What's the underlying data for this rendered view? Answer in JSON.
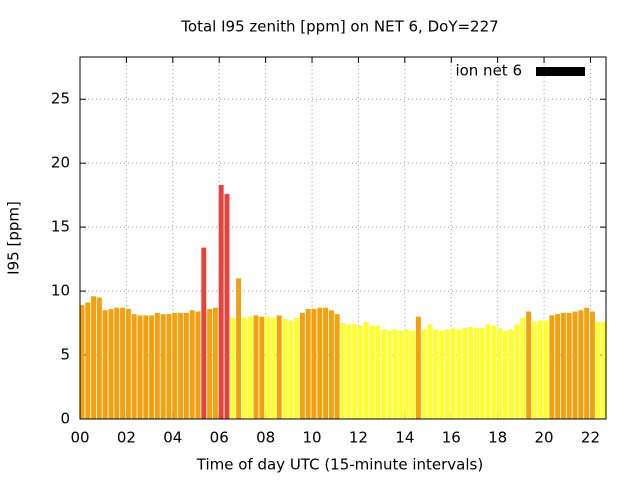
{
  "chart_data": {
    "type": "bar",
    "title": "Total I95 zenith [ppm] on NET 6, DoY=227",
    "x_label": "Time of day UTC (15-minute intervals)",
    "y_label": "I95 [ppm]",
    "x": [
      0,
      0.25,
      0.5,
      0.75,
      1,
      1.25,
      1.5,
      1.75,
      2,
      2.25,
      2.5,
      2.75,
      3,
      3.25,
      3.5,
      3.75,
      4,
      4.25,
      4.5,
      4.75,
      5,
      5.25,
      5.5,
      5.75,
      6,
      6.25,
      6.5,
      6.75,
      7,
      7.25,
      7.5,
      7.75,
      8,
      8.25,
      8.5,
      8.75,
      9,
      9.25,
      9.5,
      9.75,
      10,
      10.25,
      10.5,
      10.75,
      11,
      11.25,
      11.5,
      11.75,
      12,
      12.25,
      12.5,
      12.75,
      13,
      13.25,
      13.5,
      13.75,
      14,
      14.25,
      14.5,
      14.75,
      15,
      15.25,
      15.5,
      15.75,
      16,
      16.25,
      16.5,
      16.75,
      17,
      17.25,
      17.5,
      17.75,
      18,
      18.25,
      18.5,
      18.75,
      19,
      19.25,
      19.5,
      19.75,
      20,
      20.25,
      20.5,
      20.75,
      21,
      21.25,
      21.5,
      21.75,
      22,
      22.25,
      22.5
    ],
    "series": [
      {
        "name": "ion net 6",
        "color": "#000000",
        "values": [
          8.9,
          9.1,
          9.6,
          9.5,
          8.5,
          8.6,
          8.7,
          8.7,
          8.6,
          8.2,
          8.1,
          8.1,
          8.1,
          8.3,
          8.2,
          8.2,
          8.3,
          8.3,
          8.3,
          8.5,
          8.4,
          13.4,
          8.6,
          8.7,
          18.3,
          17.6,
          7.9,
          11.0,
          7.9,
          8.0,
          8.1,
          8.0,
          8.0,
          7.9,
          8.1,
          7.8,
          7.7,
          7.9,
          8.3,
          8.6,
          8.6,
          8.7,
          8.7,
          8.5,
          8.2,
          7.5,
          7.4,
          7.4,
          7.3,
          7.6,
          7.3,
          7.3,
          7.0,
          6.9,
          7.0,
          6.9,
          7.0,
          6.9,
          8.0,
          7.0,
          7.4,
          7.0,
          6.9,
          7.0,
          7.1,
          7.0,
          7.1,
          7.2,
          7.1,
          7.1,
          7.4,
          7.3,
          7.1,
          6.9,
          7.0,
          7.4,
          7.9,
          8.4,
          7.6,
          7.7,
          7.7,
          8.1,
          8.2,
          8.3,
          8.3,
          8.4,
          8.5,
          8.7,
          8.4,
          7.6,
          7.6
        ],
        "colors": [
          "#f5a00f",
          "#f5a00f",
          "#f5a00f",
          "#f5a00f",
          "#f5a00f",
          "#f5a00f",
          "#f5a00f",
          "#f5a00f",
          "#f5a00f",
          "#f5a00f",
          "#f5a00f",
          "#f5a00f",
          "#f5a00f",
          "#f5a00f",
          "#f5a00f",
          "#f5a00f",
          "#f5a00f",
          "#f5a00f",
          "#f5a00f",
          "#f5a00f",
          "#f5a00f",
          "#e8423c",
          "#f5a00f",
          "#f5a00f",
          "#e8423c",
          "#e8423c",
          "#ffff30",
          "#f5a00f",
          "#ffff30",
          "#ffff30",
          "#f5a00f",
          "#f5a00f",
          "#ffff30",
          "#ffff30",
          "#f5a00f",
          "#ffff30",
          "#ffff30",
          "#ffff30",
          "#f5a00f",
          "#f5a00f",
          "#f5a00f",
          "#f5a00f",
          "#f5a00f",
          "#f5a00f",
          "#f5a00f",
          "#ffff30",
          "#ffff30",
          "#ffff30",
          "#ffff30",
          "#ffff30",
          "#ffff30",
          "#ffff30",
          "#ffff30",
          "#ffff30",
          "#ffff30",
          "#ffff30",
          "#ffff30",
          "#ffff30",
          "#f5a00f",
          "#ffff30",
          "#ffff30",
          "#ffff30",
          "#ffff30",
          "#ffff30",
          "#ffff30",
          "#ffff30",
          "#ffff30",
          "#ffff30",
          "#ffff30",
          "#ffff30",
          "#ffff30",
          "#ffff30",
          "#ffff30",
          "#ffff30",
          "#ffff30",
          "#ffff30",
          "#ffff30",
          "#f5a00f",
          "#ffff30",
          "#ffff30",
          "#ffff30",
          "#f5a00f",
          "#f5a00f",
          "#f5a00f",
          "#f5a00f",
          "#f5a00f",
          "#f5a00f",
          "#f5a00f",
          "#f5a00f",
          "#ffff30",
          "#ffff30"
        ]
      }
    ],
    "xlim": [
      0,
      22.67
    ],
    "xticks": [
      {
        "value": 0,
        "label": "00"
      },
      {
        "value": 2,
        "label": "02"
      },
      {
        "value": 4,
        "label": "04"
      },
      {
        "value": 6,
        "label": "06"
      },
      {
        "value": 8,
        "label": "08"
      },
      {
        "value": 10,
        "label": "10"
      },
      {
        "value": 12,
        "label": "12"
      },
      {
        "value": 14,
        "label": "14"
      },
      {
        "value": 16,
        "label": "16"
      },
      {
        "value": 18,
        "label": "18"
      },
      {
        "value": 20,
        "label": "20"
      },
      {
        "value": 22,
        "label": "22"
      }
    ],
    "ylim": [
      0,
      28.3
    ],
    "yticks": [
      0,
      5,
      10,
      15,
      20,
      25
    ],
    "grid": true,
    "legend": "top-right"
  }
}
